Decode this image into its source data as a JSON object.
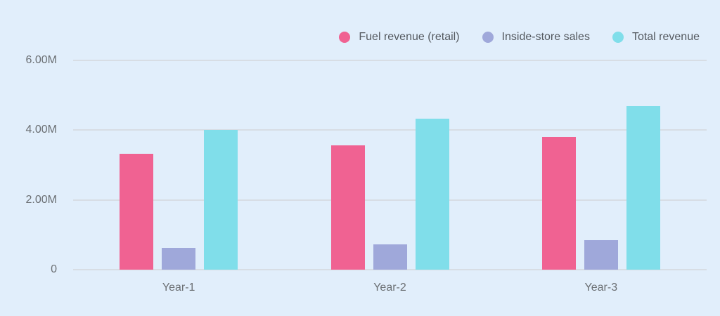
{
  "chart_data": {
    "type": "bar",
    "title": "",
    "xlabel": "",
    "ylabel": "",
    "categories": [
      "Year-1",
      "Year-2",
      "Year-3"
    ],
    "series": [
      {
        "name": "Fuel revenue (retail)",
        "color": "#f06292",
        "values": [
          3330000,
          3560000,
          3800000
        ]
      },
      {
        "name": "Inside-store sales",
        "color": "#9fa8da",
        "values": [
          620000,
          730000,
          840000
        ]
      },
      {
        "name": "Total revenue",
        "color": "#80deea",
        "values": [
          4000000,
          4330000,
          4700000
        ]
      }
    ],
    "ylim": [
      0,
      6000000
    ],
    "yticks": [
      0,
      2000000,
      4000000,
      6000000
    ],
    "ytick_labels": [
      "0",
      "2.00M",
      "4.00M",
      "6.00M"
    ],
    "grid": true,
    "legend_position": "top-right"
  },
  "legend": {
    "items": [
      {
        "label": "Fuel revenue (retail)",
        "color": "#f06292"
      },
      {
        "label": "Inside-store sales",
        "color": "#9fa8da"
      },
      {
        "label": "Total revenue",
        "color": "#80deea"
      }
    ]
  },
  "colors": {
    "background": "#e1eefb",
    "gridline": "#d7dde4",
    "axis_text": "#6b6f73"
  }
}
